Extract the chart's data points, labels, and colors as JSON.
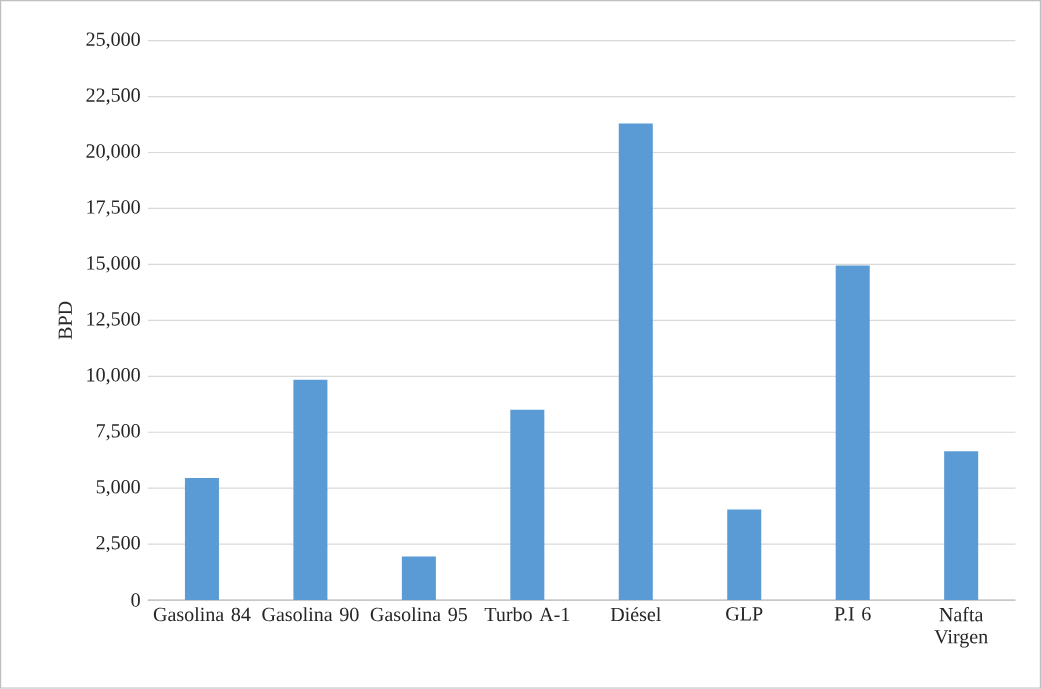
{
  "chart_data": {
    "type": "bar",
    "ylabel": "BPD",
    "categories": [
      "Gasolina 84",
      "Gasolina 90",
      "Gasolina 95",
      "Turbo A-1",
      "Diésel",
      "GLP",
      "P.I 6",
      "Nafta Virgen"
    ],
    "values": [
      5450,
      9850,
      1950,
      8500,
      21300,
      4050,
      14950,
      6650
    ],
    "color": "#5b9bd5",
    "ylim": [
      0,
      25000
    ],
    "yticks": [
      {
        "value": 0,
        "label": "0"
      },
      {
        "value": 2500,
        "label": "2,500"
      },
      {
        "value": 5000,
        "label": "5,000"
      },
      {
        "value": 7500,
        "label": "7,500"
      },
      {
        "value": 10000,
        "label": "10,000"
      },
      {
        "value": 12500,
        "label": "12,500"
      },
      {
        "value": 15000,
        "label": "15,000"
      },
      {
        "value": 17500,
        "label": "17,500"
      },
      {
        "value": 20000,
        "label": "20,000"
      },
      {
        "value": 22500,
        "label": "22,500"
      },
      {
        "value": 25000,
        "label": "25,000"
      }
    ],
    "grid": "y"
  }
}
